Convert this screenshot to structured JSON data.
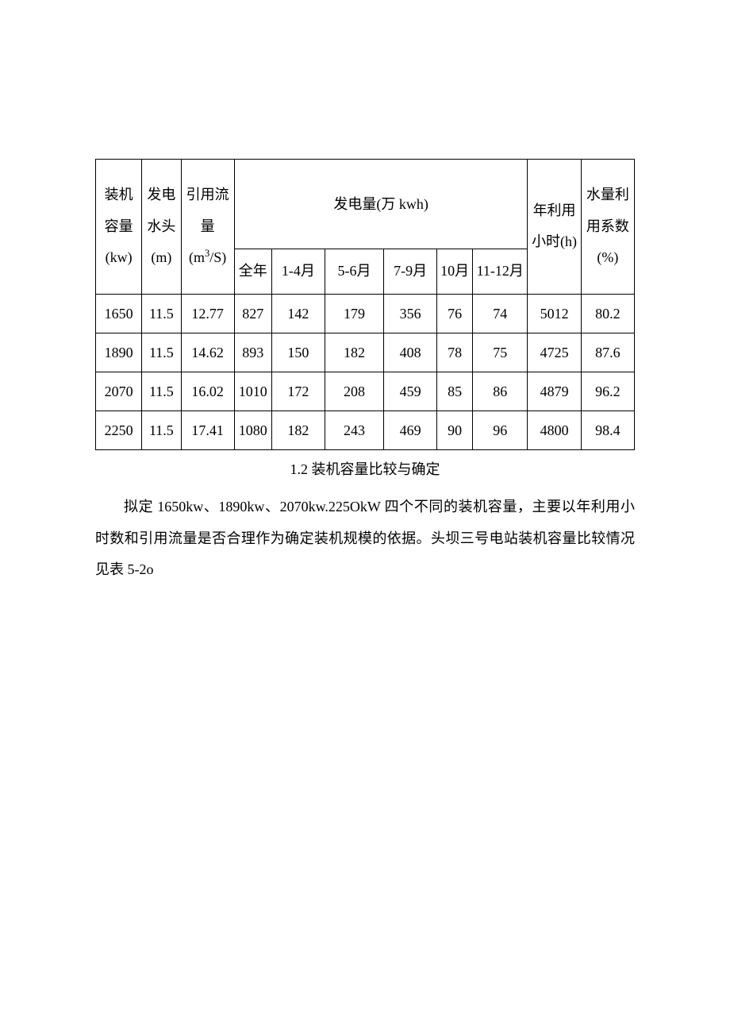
{
  "table": {
    "headers": {
      "col1": "装机容量(kw)",
      "col2": "发电水头(m)",
      "col3_line1": "引用流量(m",
      "col3_sup": "3",
      "col3_line2": "/S)",
      "col4_group": "发电量(万 kwh)",
      "col5": "年利用小时(h)",
      "col6": "水量利用系数(%)",
      "sub1": "全年",
      "sub2": "1-4月",
      "sub3": "5-6月",
      "sub4": "7-9月",
      "sub5": "10月",
      "sub6": "11-12月"
    },
    "col_widths": [
      "52",
      "44",
      "60",
      "42",
      "60",
      "66",
      "60",
      "40",
      "62",
      "60",
      "60"
    ],
    "rows": [
      {
        "capacity": "1650",
        "head": "11.5",
        "flow": "12.77",
        "annual": "827",
        "m14": "142",
        "m56": "179",
        "m79": "356",
        "m10": "76",
        "m1112": "74",
        "hours": "5012",
        "coef": "80.2"
      },
      {
        "capacity": "1890",
        "head": "11.5",
        "flow": "14.62",
        "annual": "893",
        "m14": "150",
        "m56": "182",
        "m79": "408",
        "m10": "78",
        "m1112": "75",
        "hours": "4725",
        "coef": "87.6"
      },
      {
        "capacity": "2070",
        "head": "11.5",
        "flow": "16.02",
        "annual": "1010",
        "m14": "172",
        "m56": "208",
        "m79": "459",
        "m10": "85",
        "m1112": "86",
        "hours": "4879",
        "coef": "96.2"
      },
      {
        "capacity": "2250",
        "head": "11.5",
        "flow": "17.41",
        "annual": "1080",
        "m14": "182",
        "m56": "243",
        "m79": "469",
        "m10": "90",
        "m1112": "96",
        "hours": "4800",
        "coef": "98.4"
      }
    ]
  },
  "section": {
    "heading": "1.2 装机容量比较与确定",
    "para": "拟定 1650kw、1890kw、2070kw.225OkW 四个不同的装机容量，主要以年利用小时数和引用流量是否合理作为确定装机规模的依据。头坝三号电站装机容量比较情况见表 5-2o"
  },
  "styles": {
    "border_color": "#000000",
    "background_color": "#ffffff",
    "text_color": "#000000",
    "font_family": "SimSun",
    "base_font_size": 18,
    "line_height": 2.2
  }
}
